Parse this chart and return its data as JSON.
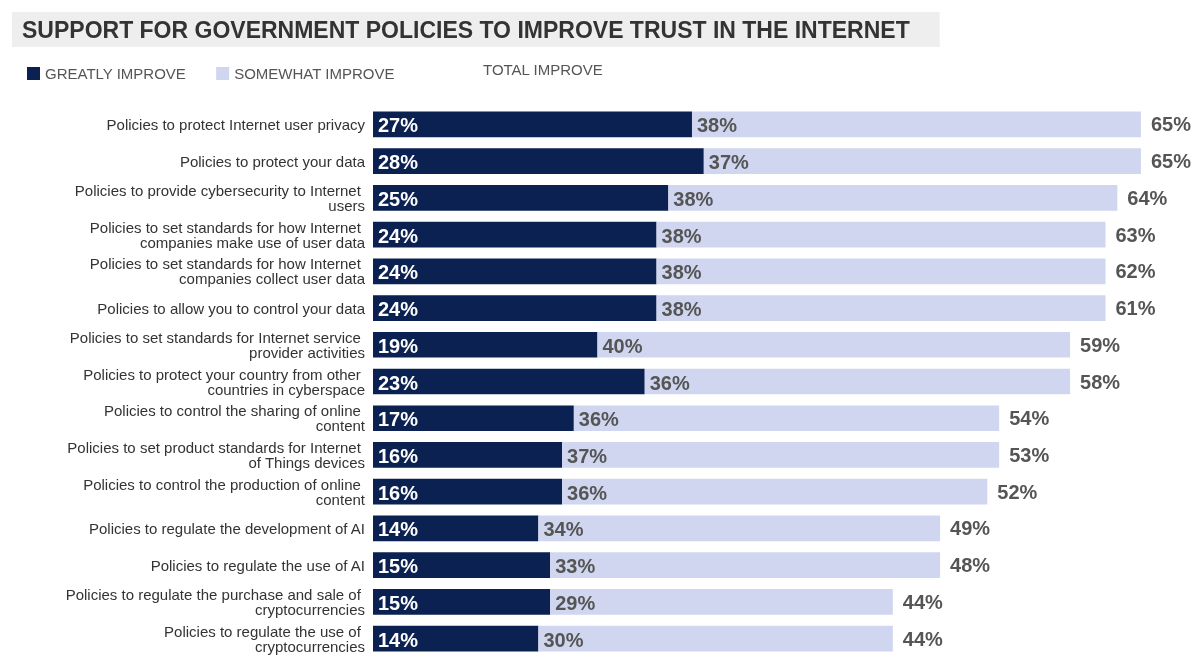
{
  "chart_data": {
    "type": "bar",
    "orientation": "horizontal",
    "stacked": true,
    "title": "SUPPORT FOR GOVERNMENT POLICIES TO IMPROVE TRUST IN THE INTERNET",
    "categories": [
      "Policies to protect Internet user privacy",
      "Policies to protect your data",
      "Policies to provide cybersecurity to Internet users",
      "Policies to set standards for how Internet companies make use of user data",
      "Policies to set standards for how Internet companies collect user data",
      "Policies to allow you to control your data",
      "Policies to set standards for Internet service provider activities",
      "Policies to protect your country from other countries in cyberspace",
      "Policies to control the sharing of online content",
      "Policies to set product standards for Internet of Things devices",
      "Policies to control the production of online content",
      "Policies to regulate the development of AI",
      "Policies to regulate the use of AI",
      "Policies to regulate the purchase and sale of cryptocurrencies",
      "Policies to regulate the use of cryptocurrencies"
    ],
    "series": [
      {
        "name": "GREATLY IMPROVE",
        "color": "#0b2151",
        "values": [
          27,
          28,
          25,
          24,
          24,
          24,
          19,
          23,
          17,
          16,
          16,
          14,
          15,
          15,
          14
        ],
        "value_labels": [
          "27%",
          "28%",
          "25%",
          "24%",
          "24%",
          "24%",
          "19%",
          "23%",
          "17%",
          "16%",
          "16%",
          "14%",
          "15%",
          "15%",
          "14%"
        ]
      },
      {
        "name": "SOMEWHAT IMPROVE",
        "color": "#d0d6ef",
        "values": [
          38,
          37,
          38,
          38,
          38,
          38,
          40,
          36,
          36,
          37,
          36,
          34,
          33,
          29,
          30
        ],
        "value_labels": [
          "38%",
          "37%",
          "38%",
          "38%",
          "38%",
          "38%",
          "40%",
          "36%",
          "36%",
          "37%",
          "36%",
          "34%",
          "33%",
          "29%",
          "30%"
        ]
      }
    ],
    "totals": [
      "65%",
      "65%",
      "64%",
      "63%",
      "62%",
      "61%",
      "59%",
      "58%",
      "54%",
      "53%",
      "52%",
      "49%",
      "48%",
      "44%",
      "44%"
    ],
    "annotations": [
      "TOTAL IMPROVE"
    ],
    "tick_labels": "y",
    "grid": false,
    "legend": "top left"
  }
}
